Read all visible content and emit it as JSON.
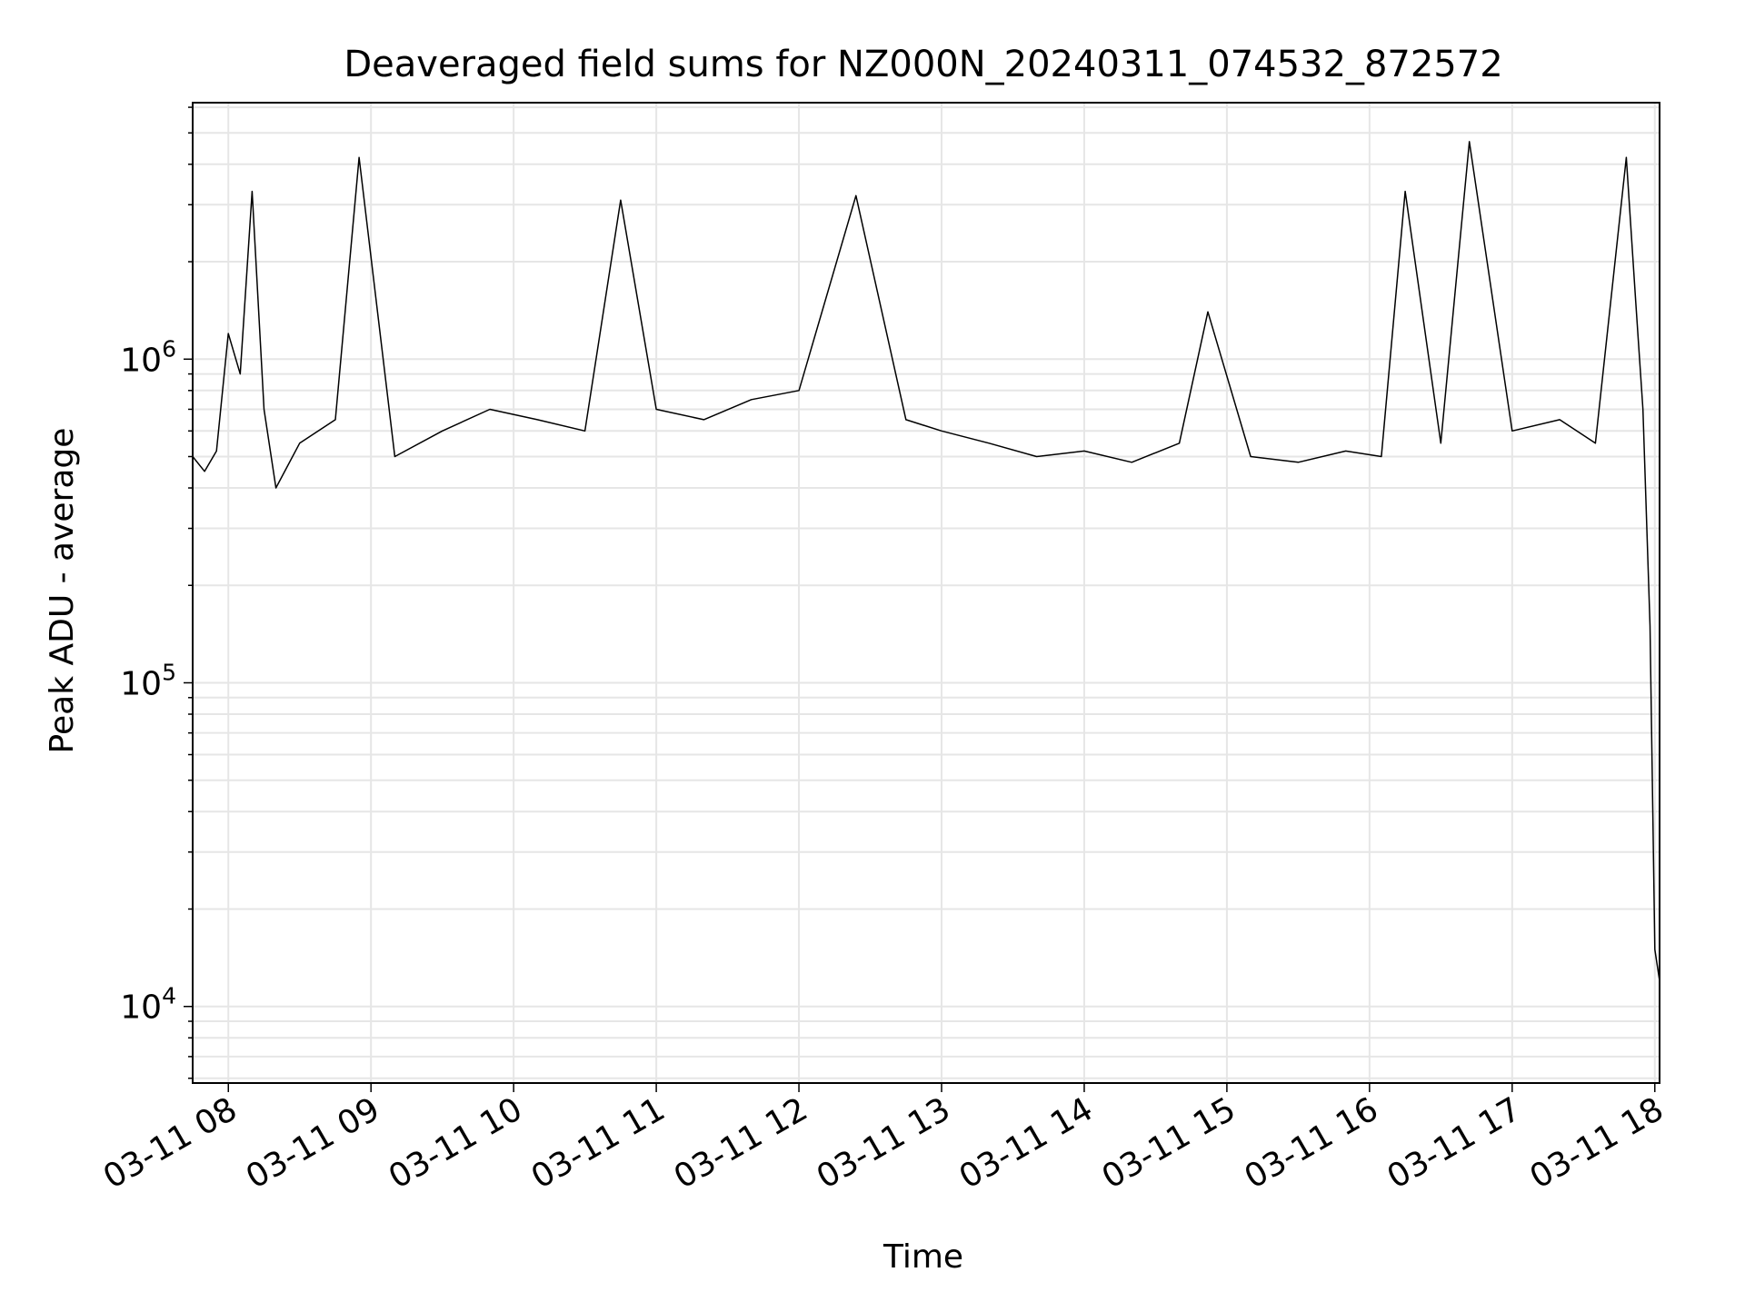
{
  "chart_data": {
    "type": "line",
    "title": "Deaveraged field sums for NZ000N_20240311_074532_872572",
    "xlabel": "Time",
    "ylabel": "Peak ADU - average",
    "yscale": "log",
    "ylim": [
      5800,
      6200000
    ],
    "xlim": [
      "2024-03-11 07:45",
      "2024-03-11 18:02"
    ],
    "grid": true,
    "line_color": "#000000",
    "grid_color": "#e6e6e6",
    "x_ticks": [
      "03-11 08",
      "03-11 09",
      "03-11 10",
      "03-11 11",
      "03-11 12",
      "03-11 13",
      "03-11 14",
      "03-11 15",
      "03-11 16",
      "03-11 17",
      "03-11 18"
    ],
    "x_tick_times": [
      "2024-03-11 08:00",
      "2024-03-11 09:00",
      "2024-03-11 10:00",
      "2024-03-11 11:00",
      "2024-03-11 12:00",
      "2024-03-11 13:00",
      "2024-03-11 14:00",
      "2024-03-11 15:00",
      "2024-03-11 16:00",
      "2024-03-11 17:00",
      "2024-03-11 18:00"
    ],
    "y_ticks": [
      {
        "value": 10000,
        "base": "10",
        "exp": "4"
      },
      {
        "value": 100000,
        "base": "10",
        "exp": "5"
      },
      {
        "value": 1000000,
        "base": "10",
        "exp": "6"
      }
    ],
    "series": [
      {
        "name": "",
        "x": [
          "2024-03-11 07:45",
          "2024-03-11 07:50",
          "2024-03-11 07:55",
          "2024-03-11 08:00",
          "2024-03-11 08:05",
          "2024-03-11 08:10",
          "2024-03-11 08:15",
          "2024-03-11 08:20",
          "2024-03-11 08:30",
          "2024-03-11 08:45",
          "2024-03-11 08:55",
          "2024-03-11 09:10",
          "2024-03-11 09:30",
          "2024-03-11 09:50",
          "2024-03-11 10:10",
          "2024-03-11 10:30",
          "2024-03-11 10:45",
          "2024-03-11 11:00",
          "2024-03-11 11:20",
          "2024-03-11 11:40",
          "2024-03-11 12:00",
          "2024-03-11 12:24",
          "2024-03-11 12:45",
          "2024-03-11 13:00",
          "2024-03-11 13:20",
          "2024-03-11 13:40",
          "2024-03-11 14:00",
          "2024-03-11 14:20",
          "2024-03-11 14:40",
          "2024-03-11 14:52",
          "2024-03-11 15:10",
          "2024-03-11 15:30",
          "2024-03-11 15:50",
          "2024-03-11 16:05",
          "2024-03-11 16:15",
          "2024-03-11 16:30",
          "2024-03-11 16:42",
          "2024-03-11 17:00",
          "2024-03-11 17:20",
          "2024-03-11 17:35",
          "2024-03-11 17:48",
          "2024-03-11 17:52",
          "2024-03-11 17:55",
          "2024-03-11 17:58",
          "2024-03-11 18:00",
          "2024-03-11 18:02"
        ],
        "values": [
          500000,
          450000,
          520000,
          1200000,
          900000,
          3300000,
          700000,
          400000,
          550000,
          650000,
          4200000,
          500000,
          600000,
          700000,
          650000,
          600000,
          3100000,
          700000,
          650000,
          750000,
          800000,
          3200000,
          650000,
          600000,
          550000,
          500000,
          520000,
          480000,
          550000,
          1400000,
          500000,
          480000,
          520000,
          500000,
          3300000,
          550000,
          4700000,
          600000,
          650000,
          550000,
          4200000,
          1500000,
          700000,
          150000,
          15000,
          12000
        ]
      }
    ]
  }
}
